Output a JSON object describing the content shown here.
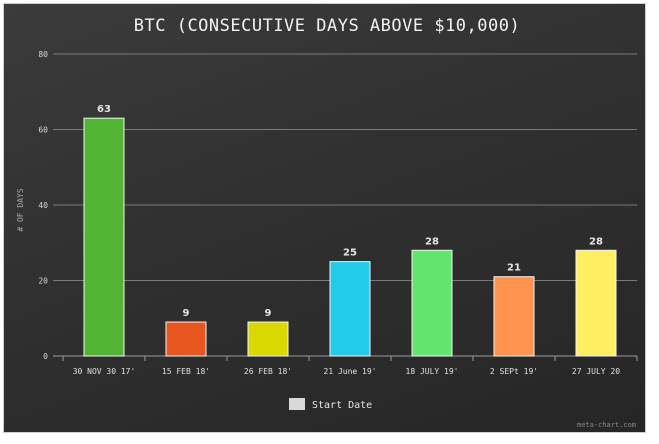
{
  "chart_data": {
    "type": "bar",
    "title": "BTC (CONSECUTIVE DAYS ABOVE $10,000)",
    "ylabel": "# OF DAYS",
    "xlabel": "",
    "ylim": [
      0,
      80
    ],
    "yticks": [
      0,
      20,
      40,
      60,
      80
    ],
    "grid": true,
    "categories": [
      "30 NOV 30 17'",
      "15 FEB 18'",
      "26 FEB 18'",
      "21 June 19'",
      "18 JULY 19'",
      "2 SEPt 19'",
      "27 JULY 20"
    ],
    "series": [
      {
        "name": "Start Date",
        "values": [
          63,
          9,
          9,
          25,
          28,
          21,
          28
        ]
      }
    ],
    "bar_colors": [
      "#52b634",
      "#e8561f",
      "#d9d800",
      "#22cce8",
      "#62e46e",
      "#ff9450",
      "#fdee62"
    ],
    "legend": {
      "position": "bottom",
      "label": "Start Date",
      "swatch_color": "#d9d9d9"
    },
    "credit": "meta-chart.com"
  }
}
